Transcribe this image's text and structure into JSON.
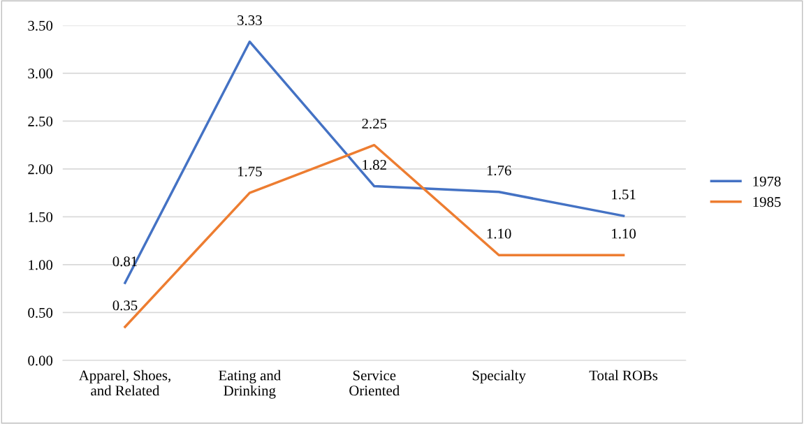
{
  "chart_data": {
    "type": "line",
    "categories": [
      "Apparel, Shoes,\nand Related",
      "Eating and\nDrinking",
      "Service\nOriented",
      "Specialty",
      "Total ROBs"
    ],
    "series": [
      {
        "name": "1978",
        "color": "#4472c4",
        "values": [
          0.81,
          3.33,
          1.82,
          1.76,
          1.51
        ],
        "value_labels": [
          "0.81",
          "3.33",
          "1.82",
          "1.76",
          "1.51"
        ]
      },
      {
        "name": "1985",
        "color": "#ed7d31",
        "values": [
          0.35,
          1.75,
          2.25,
          1.1,
          1.1
        ],
        "value_labels": [
          "0.35",
          "1.75",
          "2.25",
          "1.10",
          "1.10"
        ]
      }
    ],
    "ylim": [
      0,
      3.5
    ],
    "yticks": [
      {
        "value": 0,
        "label": "0.00"
      },
      {
        "value": 0.5,
        "label": "0.50"
      },
      {
        "value": 1,
        "label": "1.00"
      },
      {
        "value": 1.5,
        "label": "1.50"
      },
      {
        "value": 2,
        "label": "2.00"
      },
      {
        "value": 2.5,
        "label": "2.50"
      },
      {
        "value": 3,
        "label": "3.00"
      },
      {
        "value": 3.5,
        "label": "3.50"
      }
    ],
    "grid": "y",
    "legend": "right",
    "marker": "none",
    "line_style": "solid"
  }
}
